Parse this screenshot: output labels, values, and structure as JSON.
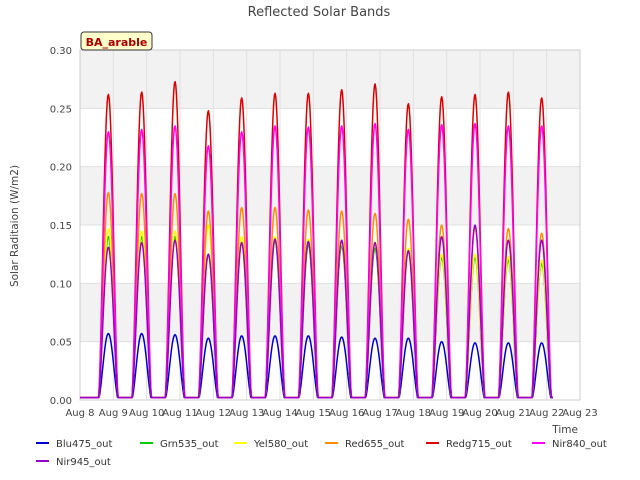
{
  "chart_data": {
    "type": "line",
    "title": "Reflected Solar Bands",
    "ylabel": "Solar Raditaion (W/m2)",
    "xlabel": "Time",
    "site_label": "BA_arable",
    "xlim": [
      8,
      23
    ],
    "ylim": [
      0.0,
      0.3
    ],
    "y_ticks": [
      0.0,
      0.05,
      0.1,
      0.15,
      0.2,
      0.25,
      0.3
    ],
    "y_tick_labels": [
      "0.00",
      "0.05",
      "0.10",
      "0.15",
      "0.20",
      "0.25",
      "0.30"
    ],
    "x_tick_labels": [
      "Aug 8",
      "Aug 9",
      "Aug 10",
      "Aug 11",
      "Aug 12",
      "Aug 13",
      "Aug 14",
      "Aug 15",
      "Aug 16",
      "Aug 17",
      "Aug 18",
      "Aug 19",
      "Aug 20",
      "Aug 21",
      "Aug 22",
      "Aug 23"
    ],
    "day_centers": [
      8.85,
      9.85,
      10.85,
      11.85,
      12.85,
      13.85,
      14.85,
      15.85,
      16.85,
      17.85,
      18.85,
      19.85,
      20.85,
      21.85
    ],
    "series": [
      {
        "name": "Blu475_out",
        "color": "#0000cc",
        "daily_peaks": [
          0.057,
          0.057,
          0.056,
          0.053,
          0.055,
          0.055,
          0.055,
          0.054,
          0.053,
          0.053,
          0.05,
          0.049,
          0.049,
          0.049
        ]
      },
      {
        "name": "Grn535_out",
        "color": "#00cc00",
        "daily_peaks": [
          0.14,
          0.14,
          0.14,
          0.125,
          0.135,
          0.137,
          0.133,
          0.132,
          0.13,
          0.128,
          0.122,
          0.122,
          0.12,
          0.117
        ]
      },
      {
        "name": "Yel580_out",
        "color": "#ffff00",
        "daily_peaks": [
          0.147,
          0.145,
          0.145,
          0.15,
          0.14,
          0.14,
          0.138,
          0.135,
          0.135,
          0.13,
          0.125,
          0.125,
          0.123,
          0.12
        ]
      },
      {
        "name": "Red655_out",
        "color": "#ff8c00",
        "daily_peaks": [
          0.178,
          0.177,
          0.177,
          0.162,
          0.165,
          0.165,
          0.163,
          0.162,
          0.16,
          0.155,
          0.15,
          0.148,
          0.147,
          0.143
        ]
      },
      {
        "name": "Redg715_out",
        "color": "#dd0000",
        "daily_peaks": [
          0.262,
          0.264,
          0.273,
          0.248,
          0.259,
          0.263,
          0.263,
          0.266,
          0.271,
          0.254,
          0.26,
          0.262,
          0.264,
          0.259
        ]
      },
      {
        "name": "Nir840_out",
        "color": "#ff00ff",
        "daily_peaks": [
          0.23,
          0.232,
          0.235,
          0.218,
          0.23,
          0.235,
          0.234,
          0.235,
          0.237,
          0.232,
          0.236,
          0.237,
          0.235,
          0.235
        ]
      },
      {
        "name": "Nir945_out",
        "color": "#9900cc",
        "daily_peaks": [
          0.131,
          0.135,
          0.137,
          0.125,
          0.135,
          0.138,
          0.136,
          0.137,
          0.135,
          0.128,
          0.14,
          0.15,
          0.137,
          0.137
        ]
      }
    ]
  }
}
